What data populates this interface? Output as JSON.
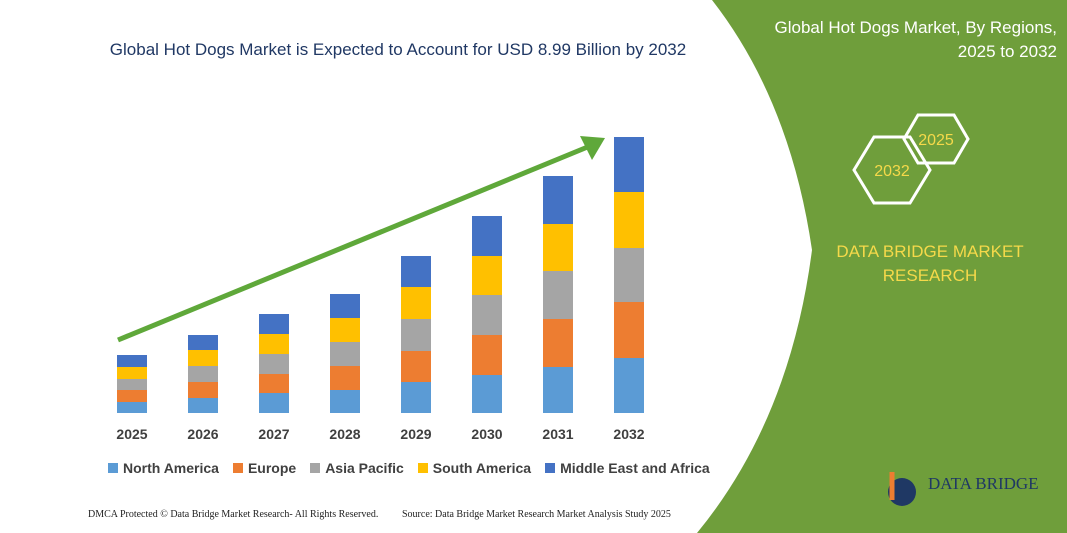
{
  "chart_data": {
    "type": "stacked-bar",
    "title": "Global Hot Dogs Market is Expected to Account for USD 8.99 Billion by 2032",
    "categories": [
      "2025",
      "2026",
      "2027",
      "2028",
      "2029",
      "2030",
      "2031",
      "2032"
    ],
    "series": [
      {
        "name": "North America",
        "color": "#5b9bd5",
        "values": [
          11,
          15,
          20,
          23,
          31,
          38,
          46,
          55
        ]
      },
      {
        "name": "Europe",
        "color": "#ed7d31",
        "values": [
          12,
          16,
          19,
          24,
          31,
          40,
          48,
          56
        ]
      },
      {
        "name": "Asia Pacific",
        "color": "#a5a5a5",
        "values": [
          11,
          16,
          20,
          24,
          32,
          40,
          48,
          54
        ]
      },
      {
        "name": "South America",
        "color": "#ffc000",
        "values": [
          12,
          16,
          20,
          24,
          32,
          39,
          47,
          56
        ]
      },
      {
        "name": "Middle East and Africa",
        "color": "#4472c4",
        "values": [
          12,
          15,
          20,
          24,
          31,
          40,
          48,
          55
        ]
      }
    ]
  },
  "panel": {
    "title": "Global Hot Dogs Market, By Regions, 2025 to 2032",
    "hex_right": "2025",
    "hex_left": "2032",
    "brand": "DATA BRIDGE MARKET RESEARCH"
  },
  "logo": {
    "text": "DATA BRIDGE"
  },
  "footer": {
    "left": "DMCA Protected © Data Bridge Market Research- All Rights Reserved.",
    "right": "Source: Data Bridge Market Research Market Analysis Study 2025"
  }
}
